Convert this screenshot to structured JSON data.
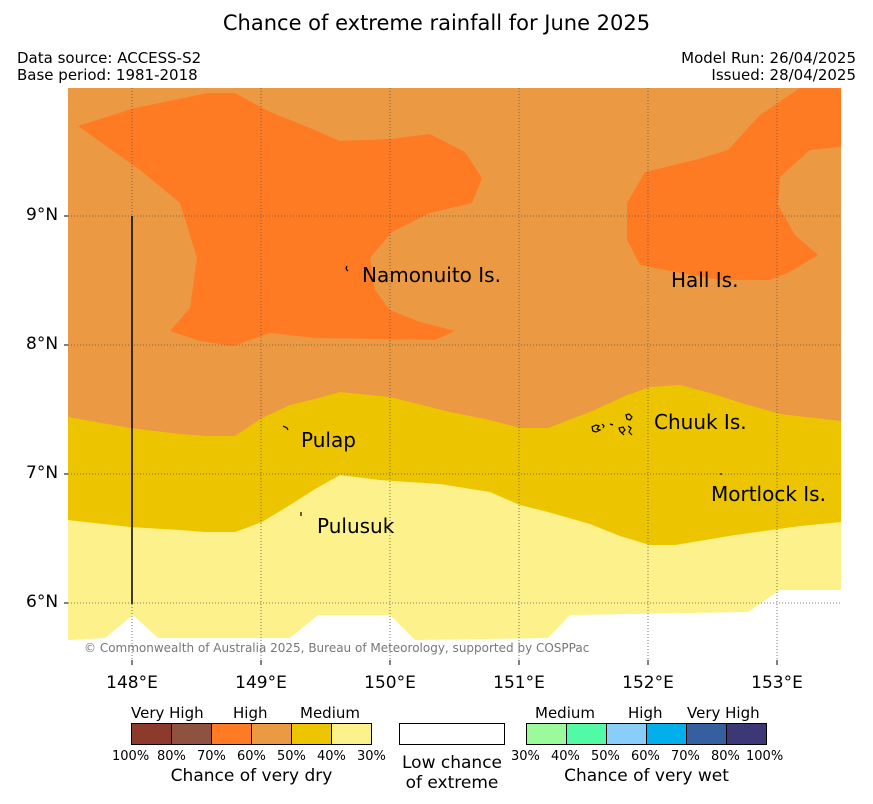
{
  "title": "Chance of extreme rainfall for June 2025",
  "header": {
    "data_source": "Data source: ACCESS-S2",
    "base_period": "Base period: 1981-2018",
    "model_run": "Model Run: 26/04/2025",
    "issued": "Issued: 28/04/2025"
  },
  "map": {
    "lat_labels": [
      "9°N",
      "8°N",
      "7°N",
      "6°N"
    ],
    "lon_labels": [
      "148°E",
      "149°E",
      "150°E",
      "151°E",
      "152°E",
      "153°E"
    ],
    "islands": {
      "namonuito": "Namonuito Is.",
      "hall": "Hall Is.",
      "pulap": "Pulap",
      "chuuk": "Chuuk Is.",
      "mortlock": "Mortlock Is.",
      "pulusuk": "Pulusuk"
    },
    "credit": "© Commonwealth of Australia 2025, Bureau of Meteorology, supported by COSPPac",
    "colors": {
      "very_dry_high_70_80": "#8B3A2C",
      "dry_high_60_70": "#FF7B23",
      "dry_high_50_60": "#EC9944",
      "dry_medium_40_50": "#ECC400",
      "dry_medium_30_40": "#FCF18A"
    }
  },
  "legend": {
    "dry": {
      "levels": [
        "Very High",
        "High",
        "Medium"
      ],
      "percents": [
        "100%",
        "80%",
        "70%",
        "60%",
        "50%",
        "40%",
        "30%"
      ],
      "colors": [
        "#8B3A2C",
        "#8E523E",
        "#FF7B23",
        "#EC9944",
        "#ECC400",
        "#FCF18A"
      ],
      "caption": "Chance of very dry"
    },
    "neutral": {
      "caption_line1": "Low chance",
      "caption_line2": "of extreme"
    },
    "wet": {
      "levels": [
        "Medium",
        "High",
        "Very High"
      ],
      "percents": [
        "30%",
        "40%",
        "50%",
        "60%",
        "70%",
        "80%",
        "100%"
      ],
      "colors": [
        "#9BFA9A",
        "#52FAA6",
        "#88CEF8",
        "#00AFEB",
        "#365FA0",
        "#3B3875"
      ],
      "caption": "Chance of very wet"
    }
  }
}
